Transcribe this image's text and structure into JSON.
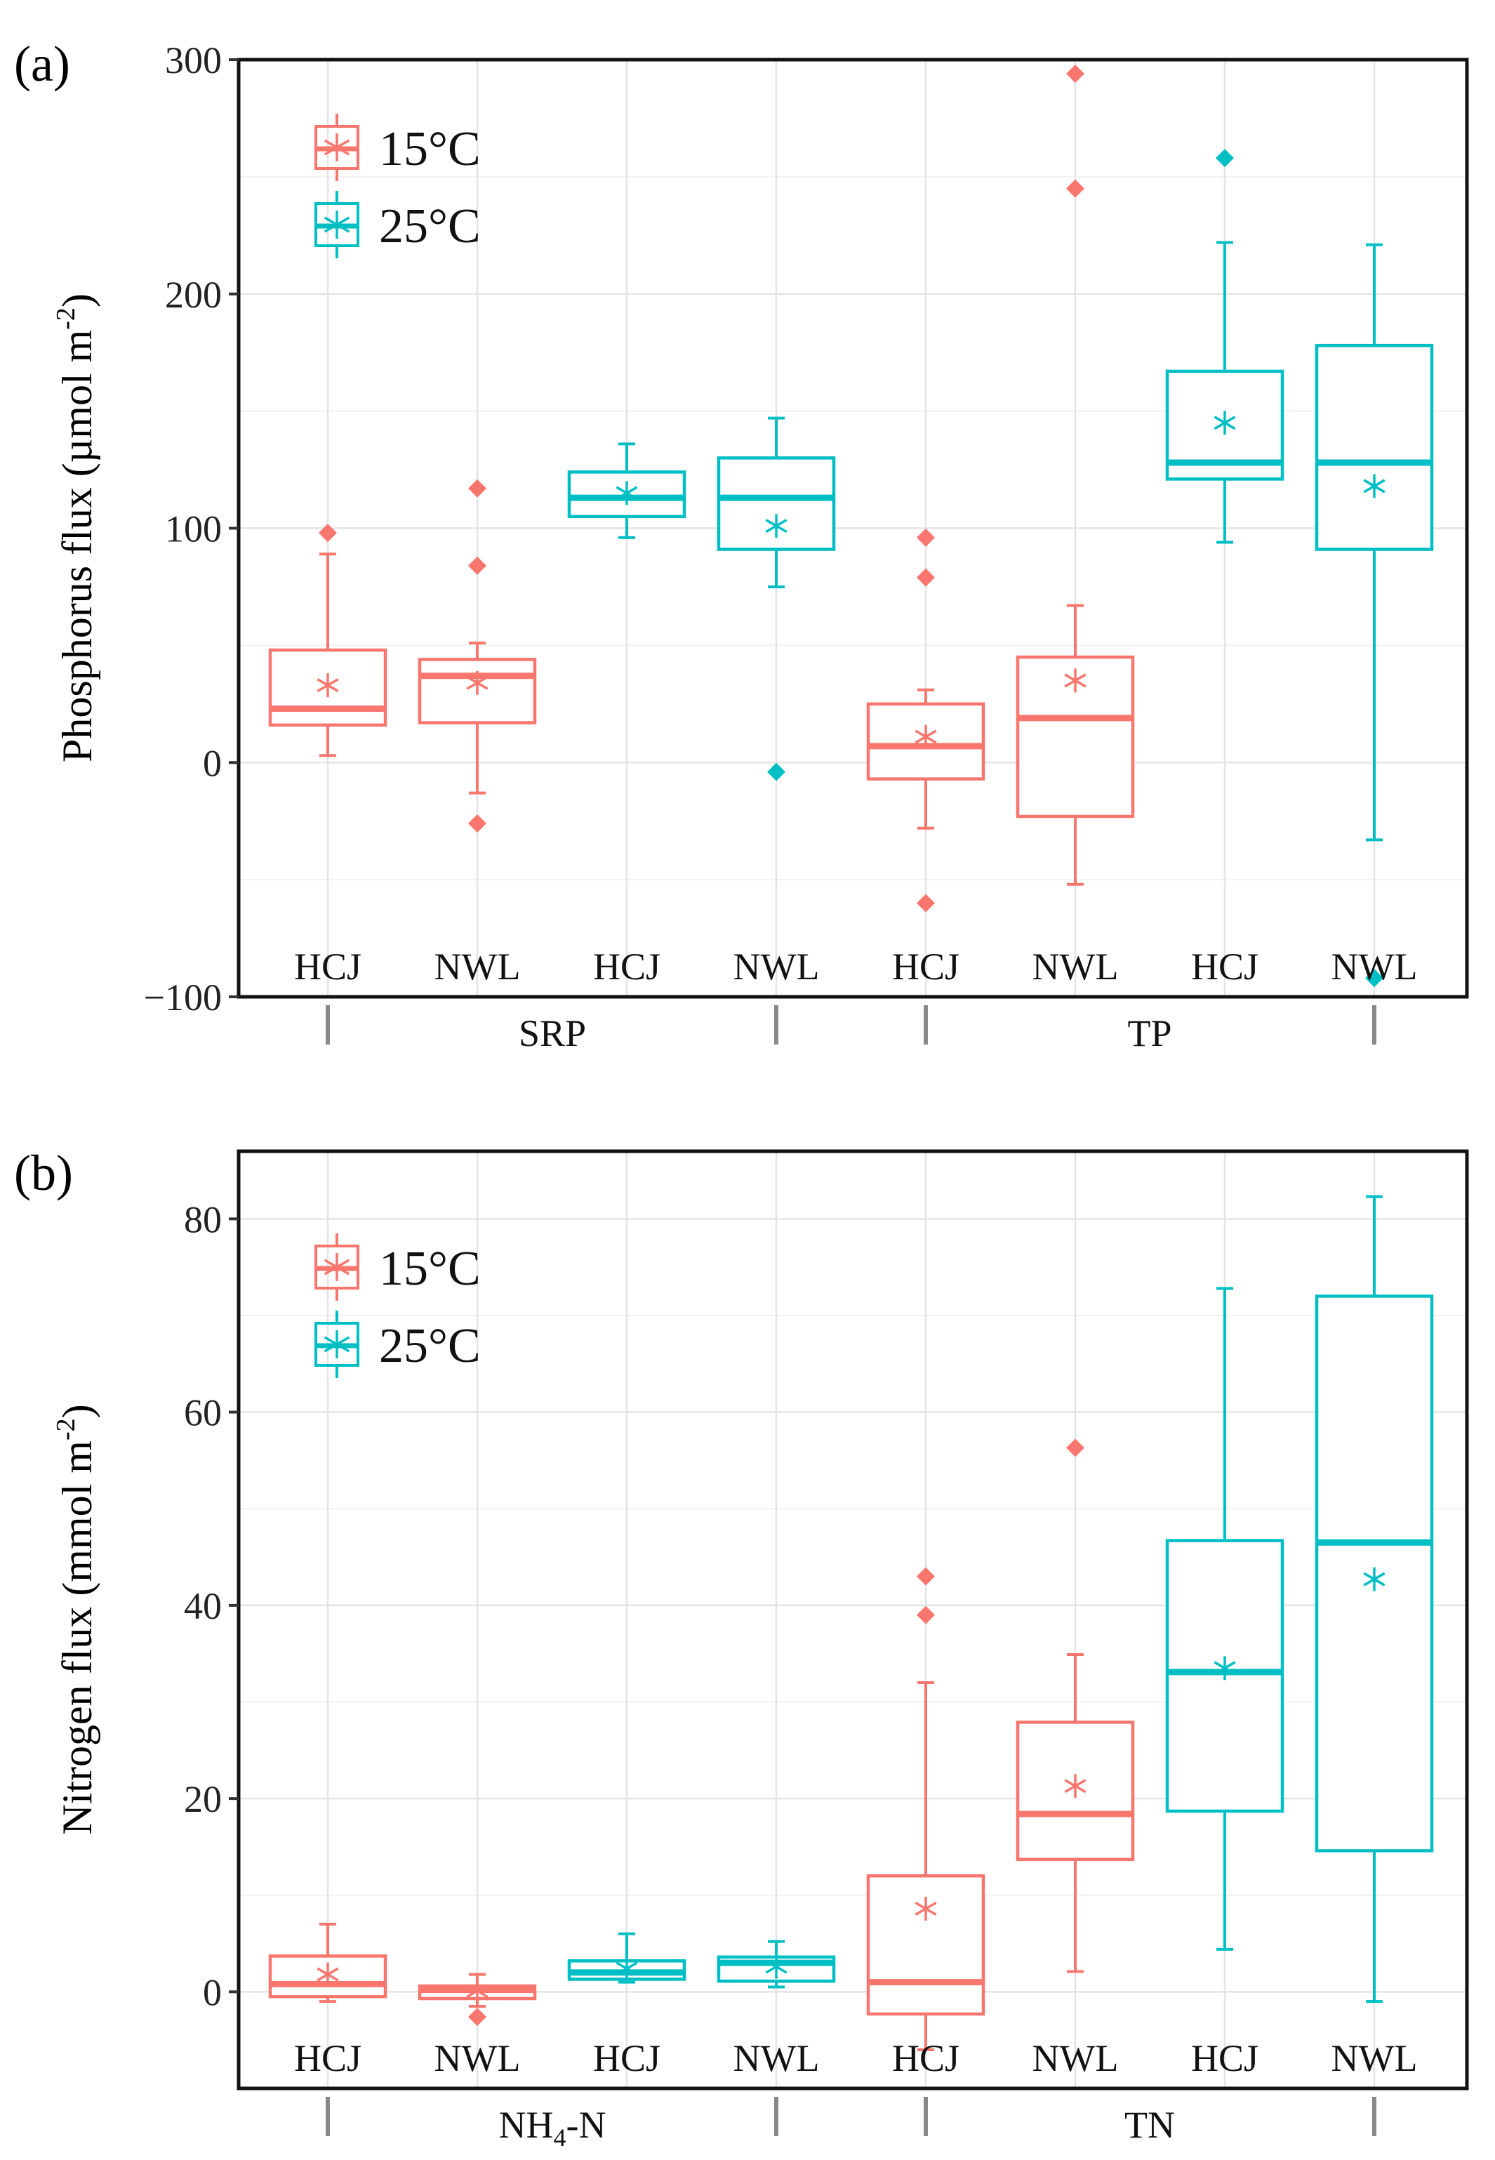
{
  "colors": {
    "c15": "#F8766D",
    "c25": "#00BFC4"
  },
  "legend": [
    {
      "label": "15°C",
      "color_key": "c15"
    },
    {
      "label": "25°C",
      "color_key": "c25"
    }
  ],
  "chart_data": [
    {
      "type": "box",
      "panel_label": "(a)",
      "ylabel_main": "Phosphorus flux (µmol m",
      "ylabel_sup": "-2",
      "ylabel_close": ")",
      "ylim": [
        -100,
        300
      ],
      "yticks": [
        -100,
        0,
        100,
        200,
        300
      ],
      "ytick_labels": [
        "−100",
        "0",
        "100",
        "200",
        "300"
      ],
      "groups": [
        {
          "label": "SRP",
          "label_main": "SRP",
          "label_sub": "",
          "label_rest": ""
        },
        {
          "label": "TP",
          "label_main": "TP",
          "label_sub": "",
          "label_rest": ""
        }
      ],
      "boxes": [
        {
          "site": "HCJ",
          "group": 0,
          "temp": "15°C",
          "color_key": "c15",
          "q1": 16,
          "median": 23,
          "q3": 48,
          "whisker_low": 3,
          "whisker_high": 89,
          "mean": 33,
          "outliers": [
            98
          ]
        },
        {
          "site": "NWL",
          "group": 0,
          "temp": "15°C",
          "color_key": "c15",
          "q1": 17,
          "median": 37,
          "q3": 44,
          "whisker_low": -13,
          "whisker_high": 51,
          "mean": 34,
          "outliers": [
            117,
            84,
            -26
          ]
        },
        {
          "site": "HCJ",
          "group": 0,
          "temp": "25°C",
          "color_key": "c25",
          "q1": 105,
          "median": 113,
          "q3": 124,
          "whisker_low": 96,
          "whisker_high": 136,
          "mean": 115,
          "outliers": []
        },
        {
          "site": "NWL",
          "group": 0,
          "temp": "25°C",
          "color_key": "c25",
          "q1": 91,
          "median": 113,
          "q3": 130,
          "whisker_low": 75,
          "whisker_high": 147,
          "mean": 101,
          "outliers": [
            -4
          ]
        },
        {
          "site": "HCJ",
          "group": 1,
          "temp": "15°C",
          "color_key": "c15",
          "q1": -7,
          "median": 7,
          "q3": 25,
          "whisker_low": -28,
          "whisker_high": 31,
          "mean": 11,
          "outliers": [
            96,
            79,
            -60
          ]
        },
        {
          "site": "NWL",
          "group": 1,
          "temp": "15°C",
          "color_key": "c15",
          "q1": -23,
          "median": 19,
          "q3": 45,
          "whisker_low": -52,
          "whisker_high": 67,
          "mean": 35,
          "outliers": [
            294,
            245
          ]
        },
        {
          "site": "HCJ",
          "group": 1,
          "temp": "25°C",
          "color_key": "c25",
          "q1": 121,
          "median": 128,
          "q3": 167,
          "whisker_low": 94,
          "whisker_high": 222,
          "mean": 145,
          "outliers": [
            258
          ]
        },
        {
          "site": "NWL",
          "group": 1,
          "temp": "25°C",
          "color_key": "c25",
          "q1": 91,
          "median": 128,
          "q3": 178,
          "whisker_low": -33,
          "whisker_high": 221,
          "mean": 118,
          "outliers": [
            -92
          ]
        }
      ]
    },
    {
      "type": "box",
      "panel_label": "(b)",
      "ylabel_main": "Nitrogen flux (mmol m",
      "ylabel_sup": "-2",
      "ylabel_close": ")",
      "ylim": [
        -10,
        87
      ],
      "yticks": [
        0,
        20,
        40,
        60,
        80
      ],
      "ytick_labels": [
        "0",
        "20",
        "40",
        "60",
        "80"
      ],
      "groups": [
        {
          "label": "NH4-N",
          "label_main": "NH",
          "label_sub": "4",
          "label_rest": "-N"
        },
        {
          "label": "TN",
          "label_main": "TN",
          "label_sub": "",
          "label_rest": ""
        }
      ],
      "boxes": [
        {
          "site": "HCJ",
          "group": 0,
          "temp": "15°C",
          "color_key": "c15",
          "q1": -0.5,
          "median": 0.8,
          "q3": 3.7,
          "whisker_low": -1,
          "whisker_high": 7,
          "mean": 1.8,
          "outliers": []
        },
        {
          "site": "NWL",
          "group": 0,
          "temp": "15°C",
          "color_key": "c15",
          "q1": -0.7,
          "median": 0.2,
          "q3": 0.6,
          "whisker_low": -1.5,
          "whisker_high": 1.8,
          "mean": 0.1,
          "outliers": [
            -2.6
          ]
        },
        {
          "site": "HCJ",
          "group": 0,
          "temp": "25°C",
          "color_key": "c25",
          "q1": 1.3,
          "median": 2.0,
          "q3": 3.2,
          "whisker_low": 1.0,
          "whisker_high": 6.0,
          "mean": 2.4,
          "outliers": []
        },
        {
          "site": "NWL",
          "group": 0,
          "temp": "25°C",
          "color_key": "c25",
          "q1": 1.1,
          "median": 3.0,
          "q3": 3.6,
          "whisker_low": 0.5,
          "whisker_high": 5.2,
          "mean": 2.6,
          "outliers": []
        },
        {
          "site": "HCJ",
          "group": 1,
          "temp": "15°C",
          "color_key": "c15",
          "q1": -2.3,
          "median": 1.0,
          "q3": 12,
          "whisker_low": -6,
          "whisker_high": 32,
          "mean": 8.6,
          "outliers": [
            43,
            39
          ]
        },
        {
          "site": "NWL",
          "group": 1,
          "temp": "15°C",
          "color_key": "c15",
          "q1": 13.7,
          "median": 18.4,
          "q3": 27.9,
          "whisker_low": 2.1,
          "whisker_high": 34.9,
          "mean": 21.3,
          "outliers": [
            56.3
          ]
        },
        {
          "site": "HCJ",
          "group": 1,
          "temp": "25°C",
          "color_key": "c25",
          "q1": 18.7,
          "median": 33.1,
          "q3": 46.7,
          "whisker_low": 4.4,
          "whisker_high": 72.8,
          "mean": 33.5,
          "outliers": []
        },
        {
          "site": "NWL",
          "group": 1,
          "temp": "25°C",
          "color_key": "c25",
          "q1": 14.6,
          "median": 46.5,
          "q3": 72,
          "whisker_low": -1,
          "whisker_high": 82.3,
          "mean": 42.7,
          "outliers": []
        }
      ]
    }
  ]
}
